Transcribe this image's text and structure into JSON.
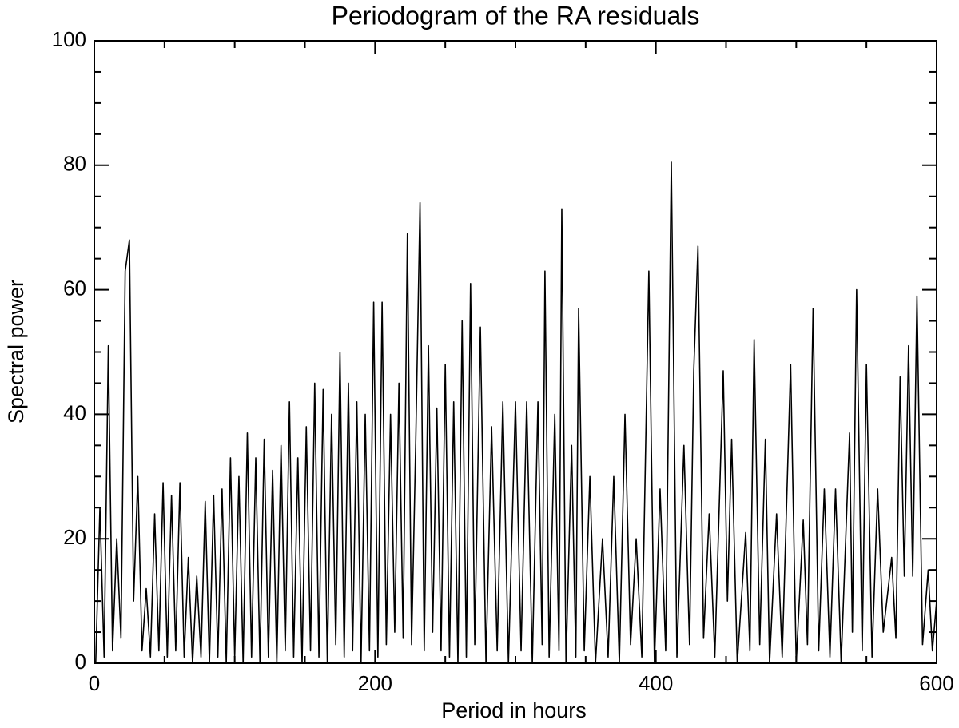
{
  "chart_data": {
    "type": "line",
    "title": "Periodogram of the RA residuals",
    "x_label": "Period in hours",
    "y_label": "Spectral power",
    "xlim": [
      0,
      600
    ],
    "ylim": [
      0,
      100
    ],
    "xticks": [
      0,
      200,
      400,
      600
    ],
    "yticks": [
      0,
      20,
      40,
      60,
      80,
      100
    ],
    "xminorticks": [
      50,
      100,
      150,
      250,
      300,
      350,
      450,
      500,
      550
    ],
    "yminorticks": [
      5,
      10,
      15,
      25,
      30,
      35,
      45,
      50,
      55,
      65,
      70,
      75,
      85,
      90,
      95
    ],
    "color": "#000000",
    "x": [
      1,
      4,
      7,
      10,
      13,
      16,
      19,
      22,
      25,
      28,
      31,
      34,
      37,
      40,
      43,
      46,
      49,
      52,
      55,
      58,
      61,
      64,
      67,
      70,
      73,
      76,
      79,
      82,
      85,
      88,
      91,
      94,
      97,
      100,
      103,
      106,
      109,
      112,
      115,
      118,
      121,
      124,
      127,
      130,
      133,
      136,
      139,
      142,
      145,
      148,
      151,
      154,
      157,
      160,
      163,
      166,
      169,
      172,
      175,
      178,
      181,
      184,
      187,
      190,
      193,
      196,
      199,
      202,
      205,
      208,
      211,
      214,
      217,
      220,
      223,
      226,
      229,
      232,
      235,
      238,
      241,
      244,
      247,
      250,
      253,
      256,
      259,
      262,
      265,
      268,
      271,
      275,
      279,
      283,
      287,
      291,
      295,
      300,
      304,
      308,
      312,
      316,
      319,
      321,
      324,
      328,
      331,
      333,
      336,
      340,
      343,
      345,
      349,
      353,
      357,
      362,
      366,
      370,
      374,
      378,
      382,
      386,
      390,
      395,
      399,
      403,
      407,
      411,
      415,
      420,
      424,
      427,
      430,
      434,
      438,
      442,
      448,
      451,
      454,
      458,
      464,
      467,
      470,
      474,
      478,
      481,
      486,
      490,
      496,
      500,
      505,
      508,
      512,
      516,
      520,
      524,
      528,
      532,
      538,
      540,
      543,
      547,
      550,
      554,
      558,
      562,
      568,
      571,
      574,
      577,
      580,
      583,
      586,
      590,
      594,
      597,
      600
    ],
    "values": [
      0,
      25,
      1,
      51,
      2,
      20,
      4,
      63,
      68,
      10,
      30,
      2,
      12,
      1,
      24,
      2,
      29,
      1,
      27,
      2,
      29,
      1,
      17,
      0,
      14,
      1,
      26,
      0,
      27,
      1,
      28,
      0,
      33,
      1,
      30,
      0,
      37,
      1,
      33,
      0,
      36,
      1,
      31,
      0,
      35,
      2,
      42,
      1,
      33,
      0,
      38,
      2,
      45,
      1,
      44,
      0,
      40,
      3,
      50,
      1,
      45,
      2,
      42,
      0,
      40,
      2,
      58,
      1,
      58,
      3,
      40,
      5,
      45,
      4,
      69,
      3,
      36,
      74,
      2,
      51,
      5,
      41,
      2,
      48,
      1,
      42,
      0,
      55,
      1,
      61,
      3,
      54,
      0,
      38,
      2,
      42,
      0,
      42,
      2,
      42,
      0,
      42,
      3,
      63,
      1,
      40,
      2,
      73,
      0,
      35,
      1,
      57,
      2,
      30,
      0,
      20,
      1,
      30,
      0,
      40,
      3,
      20,
      1,
      63,
      0,
      28,
      2,
      80.5,
      1,
      35,
      3,
      47,
      67,
      4,
      24,
      1,
      47,
      10,
      36,
      0,
      21,
      2,
      52,
      3,
      36,
      0,
      24,
      1,
      48,
      0,
      23,
      3,
      57,
      2,
      28,
      1,
      28,
      0,
      37,
      5,
      60,
      2,
      48,
      1,
      28,
      5,
      17,
      4,
      46,
      14,
      51,
      14,
      59,
      3,
      15,
      2,
      10
    ]
  }
}
